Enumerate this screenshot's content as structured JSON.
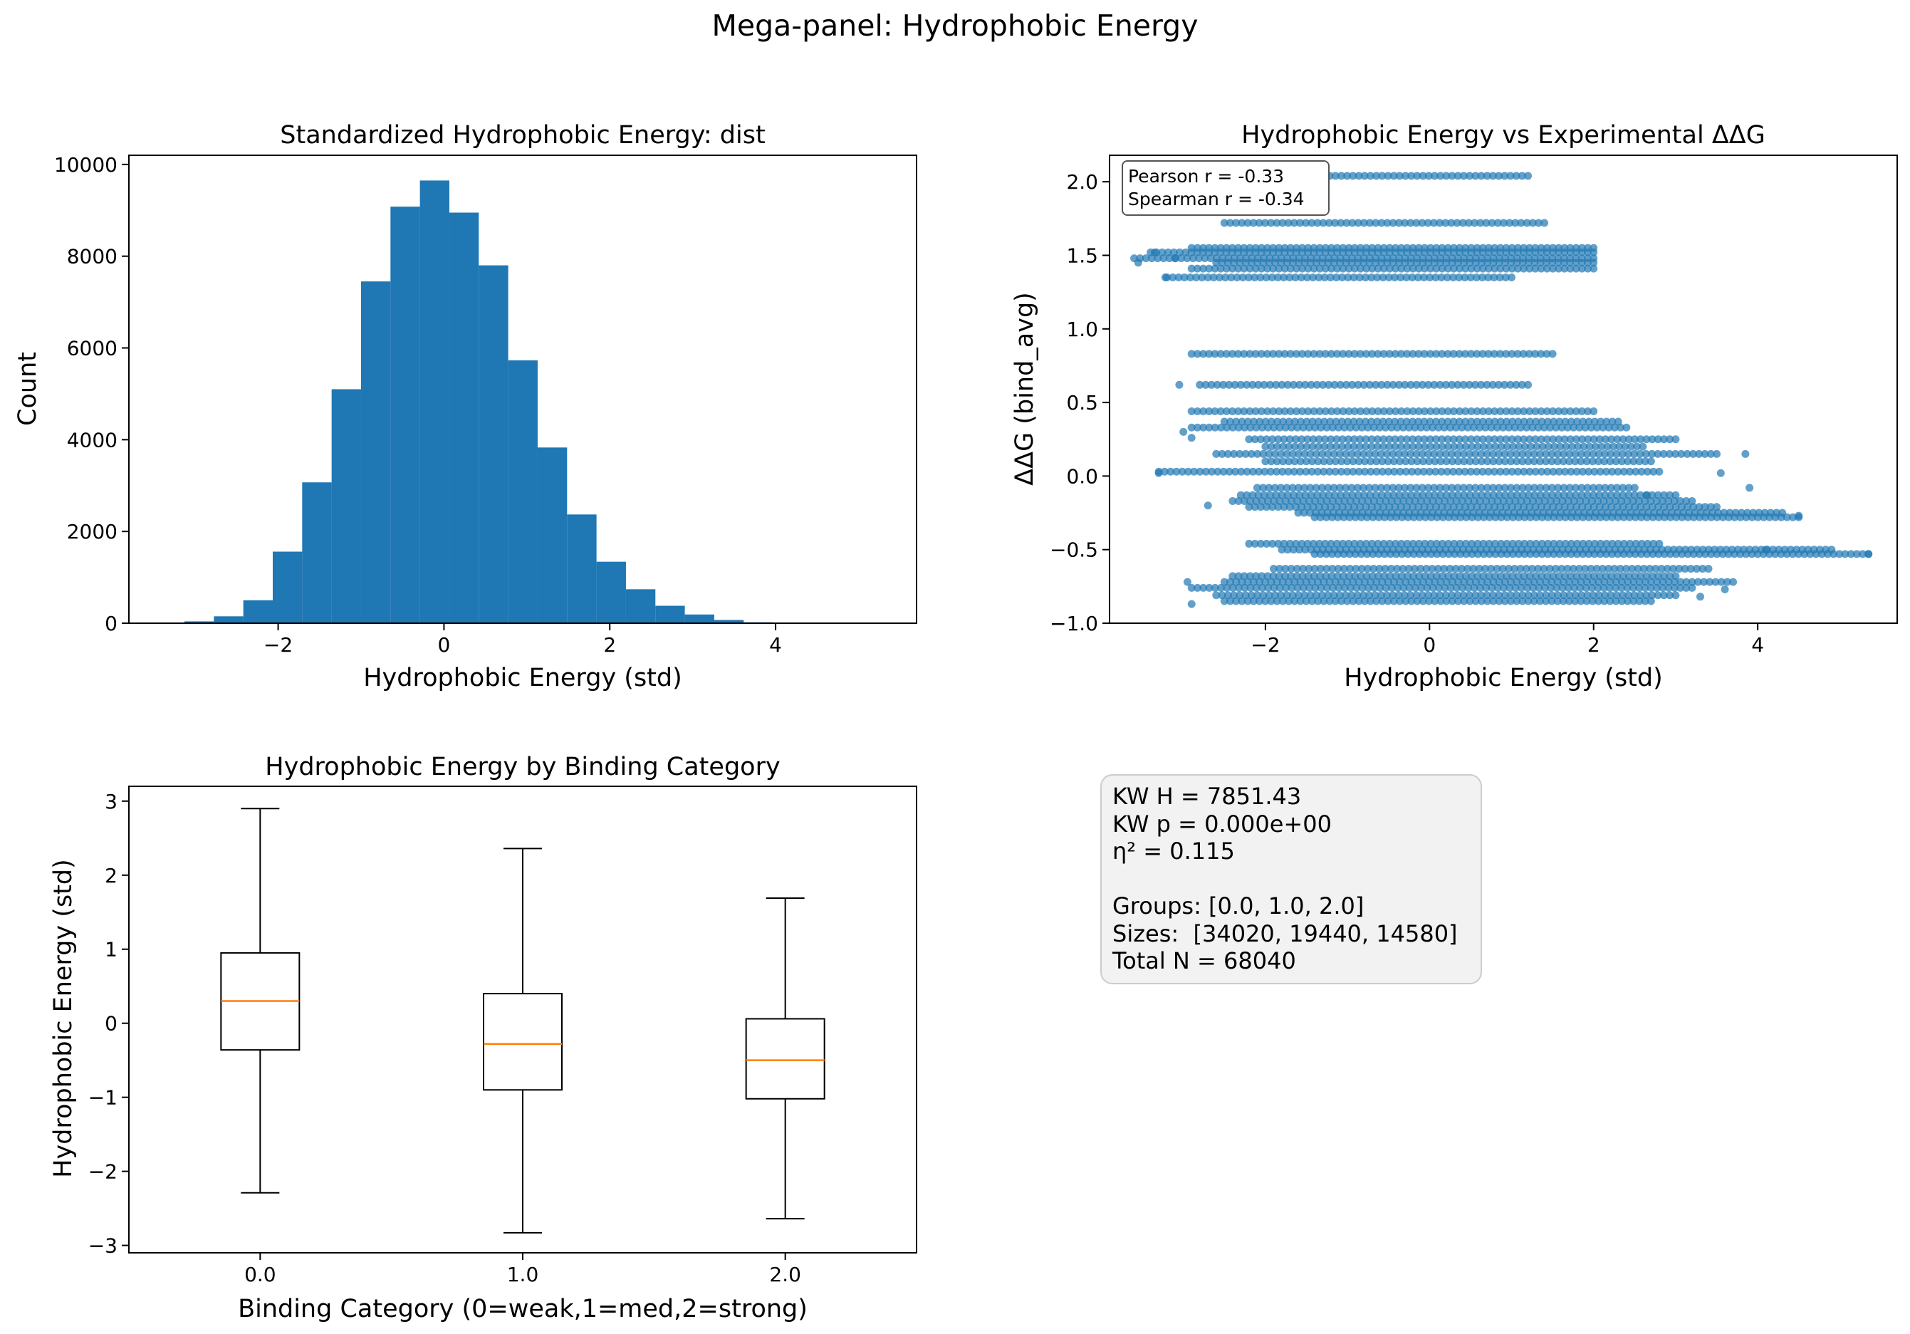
{
  "figure": {
    "suptitle": "Mega-panel: Hydrophobic Energy"
  },
  "colors": {
    "bar": "#1f77b4",
    "scatter": "#1f77b4",
    "median": "#ff7f0e",
    "stats_bg": "#f2f2f2"
  },
  "chart_data": [
    {
      "type": "bar",
      "title": "Standardized Hydrophobic Energy: dist",
      "xlabel": "Hydrophobic Energy (std)",
      "ylabel": "Count",
      "xlim": [
        -3.8,
        5.7
      ],
      "ylim": [
        0,
        10200
      ],
      "xticks": [
        -2,
        0,
        2,
        4
      ],
      "yticks": [
        0,
        2000,
        4000,
        6000,
        8000,
        10000
      ],
      "bin_edges": [
        -3.13,
        -2.775,
        -2.42,
        -2.065,
        -1.71,
        -1.355,
        -1.0,
        -0.645,
        -0.29,
        0.065,
        0.42,
        0.775,
        1.13,
        1.485,
        1.84,
        2.195,
        2.55,
        2.905,
        3.26,
        3.615,
        3.97
      ],
      "values": [
        40,
        150,
        500,
        1560,
        3070,
        5100,
        7450,
        9080,
        9650,
        8950,
        7800,
        5730,
        3830,
        2370,
        1340,
        740,
        380,
        190,
        70,
        20
      ]
    },
    {
      "type": "scatter",
      "title": "Hydrophobic Energy vs Experimental ΔΔG",
      "xlabel": "Hydrophobic Energy (std)",
      "ylabel": "ΔΔG (bind_avg)",
      "xlim": [
        -3.9,
        5.7
      ],
      "ylim": [
        -1.0,
        2.18
      ],
      "xticks": [
        -2,
        0,
        2,
        4
      ],
      "yticks": [
        -1.0,
        -0.5,
        0.0,
        0.5,
        1.0,
        1.5,
        2.0
      ],
      "annotation": [
        "Pearson r = -0.33",
        "Spearman r = -0.34"
      ],
      "bands": [
        {
          "y": 2.04,
          "xmin": -2.0,
          "xmax": 1.2
        },
        {
          "y": 1.72,
          "xmin": -2.5,
          "xmax": 1.4
        },
        {
          "y": 1.55,
          "xmin": -2.9,
          "xmax": 2.0
        },
        {
          "y": 1.52,
          "xmin": -3.4,
          "xmax": 2.0
        },
        {
          "y": 1.48,
          "xmin": -3.6,
          "xmax": 2.0
        },
        {
          "y": 1.45,
          "xmin": -2.6,
          "xmax": 2.0
        },
        {
          "y": 1.41,
          "xmin": -2.9,
          "xmax": 2.0
        },
        {
          "y": 1.35,
          "xmin": -3.2,
          "xmax": 1.0
        },
        {
          "y": 0.83,
          "xmin": -2.9,
          "xmax": 1.5
        },
        {
          "y": 0.62,
          "xmin": -2.8,
          "xmax": 1.2
        },
        {
          "y": 0.44,
          "xmin": -2.9,
          "xmax": 2.0
        },
        {
          "y": 0.37,
          "xmin": -2.5,
          "xmax": 2.3
        },
        {
          "y": 0.33,
          "xmin": -2.9,
          "xmax": 2.4
        },
        {
          "y": 0.25,
          "xmin": -2.2,
          "xmax": 3.0
        },
        {
          "y": 0.2,
          "xmin": -2.0,
          "xmax": 2.6
        },
        {
          "y": 0.15,
          "xmin": -2.6,
          "xmax": 3.5
        },
        {
          "y": 0.1,
          "xmin": -2.0,
          "xmax": 2.7
        },
        {
          "y": 0.03,
          "xmin": -3.3,
          "xmax": 2.8
        },
        {
          "y": -0.08,
          "xmin": -2.1,
          "xmax": 2.5
        },
        {
          "y": -0.13,
          "xmin": -2.3,
          "xmax": 3.0
        },
        {
          "y": -0.17,
          "xmin": -2.4,
          "xmax": 3.2
        },
        {
          "y": -0.21,
          "xmin": -2.2,
          "xmax": 3.5
        },
        {
          "y": -0.25,
          "xmin": -1.6,
          "xmax": 4.3
        },
        {
          "y": -0.28,
          "xmin": -1.4,
          "xmax": 4.5
        },
        {
          "y": -0.46,
          "xmin": -2.2,
          "xmax": 2.8
        },
        {
          "y": -0.5,
          "xmin": -1.8,
          "xmax": 4.9
        },
        {
          "y": -0.53,
          "xmin": -1.4,
          "xmax": 5.35
        },
        {
          "y": -0.63,
          "xmin": -1.9,
          "xmax": 3.4
        },
        {
          "y": -0.68,
          "xmin": -2.4,
          "xmax": 3.0
        },
        {
          "y": -0.72,
          "xmin": -2.5,
          "xmax": 3.7
        },
        {
          "y": -0.76,
          "xmin": -2.9,
          "xmax": 3.2
        },
        {
          "y": -0.81,
          "xmin": -2.6,
          "xmax": 3.0
        },
        {
          "y": -0.85,
          "xmin": -2.5,
          "xmax": 2.7
        }
      ],
      "outliers": [
        [
          -3.35,
          1.52
        ],
        [
          -3.55,
          1.45
        ],
        [
          -3.1,
          1.48
        ],
        [
          -3.22,
          1.35
        ],
        [
          -3.05,
          0.62
        ],
        [
          -3.3,
          0.02
        ],
        [
          -2.9,
          0.26
        ],
        [
          -3.0,
          0.3
        ],
        [
          -2.95,
          -0.72
        ],
        [
          -2.9,
          -0.87
        ],
        [
          -2.7,
          -0.2
        ],
        [
          3.85,
          0.15
        ],
        [
          3.6,
          -0.77
        ],
        [
          3.3,
          -0.82
        ],
        [
          4.1,
          -0.5
        ],
        [
          4.5,
          -0.27
        ],
        [
          5.35,
          -0.53
        ],
        [
          3.9,
          -0.08
        ],
        [
          3.55,
          0.02
        ],
        [
          2.65,
          -0.13
        ],
        [
          -2.5,
          2.04
        ]
      ]
    },
    {
      "type": "box",
      "title": "Hydrophobic Energy by Binding Category",
      "xlabel": "Binding Category (0=weak,1=med,2=strong)",
      "ylabel": "Hydrophobic Energy (std)",
      "categories": [
        "0.0",
        "1.0",
        "2.0"
      ],
      "ylim": [
        -3.1,
        3.2
      ],
      "yticks": [
        -3,
        -2,
        -1,
        0,
        1,
        2,
        3
      ],
      "boxes": [
        {
          "whisker_low": -2.29,
          "q1": -0.36,
          "median": 0.3,
          "q3": 0.95,
          "whisker_high": 2.9
        },
        {
          "whisker_low": -2.83,
          "q1": -0.9,
          "median": -0.28,
          "q3": 0.4,
          "whisker_high": 2.36
        },
        {
          "whisker_low": -2.64,
          "q1": -1.02,
          "median": -0.5,
          "q3": 0.06,
          "whisker_high": 1.69
        }
      ]
    }
  ],
  "stats_box": {
    "lines": [
      "KW H = 7851.43",
      "KW p = 0.000e+00",
      "η² = 0.115",
      "",
      "Groups: [0.0, 1.0, 2.0]",
      "Sizes:  [34020, 19440, 14580]",
      "Total N = 68040"
    ]
  }
}
